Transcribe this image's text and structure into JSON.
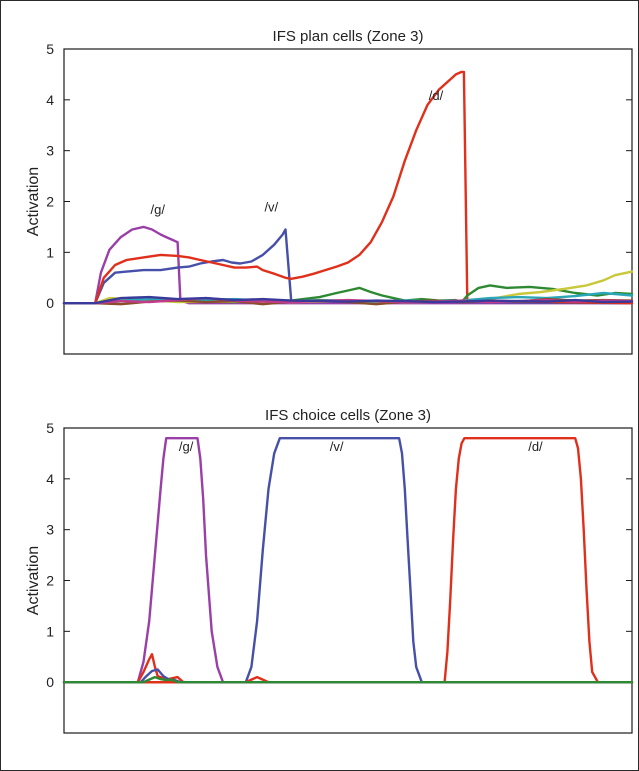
{
  "chart_data": [
    {
      "type": "line",
      "title": "IFS plan cells (Zone 3)",
      "xlabel": "",
      "ylabel": "Activation",
      "xlim": [
        0,
        100
      ],
      "ylim": [
        -1,
        5
      ],
      "yticks": [
        "0",
        "1",
        "2",
        "3",
        "4",
        "5"
      ],
      "legend": "none",
      "grid": false,
      "curve_labels": [
        {
          "text": "/g/",
          "x": 16.5,
          "y": 1.75
        },
        {
          "text": "/v/",
          "x": 36.5,
          "y": 1.8
        },
        {
          "text": "/d/",
          "x": 65.5,
          "y": 4.0
        }
      ],
      "series": [
        {
          "color": "#9b3fa8",
          "x": [
            0,
            5.5,
            6.5,
            8,
            10,
            12,
            14,
            15.5,
            17,
            18,
            19,
            20,
            20.5,
            22,
            100
          ],
          "y": [
            0,
            0,
            0.6,
            1.05,
            1.3,
            1.45,
            1.5,
            1.45,
            1.35,
            1.3,
            1.25,
            1.2,
            0.05,
            0,
            0
          ]
        },
        {
          "color": "#4650a8",
          "x": [
            0,
            5.5,
            7,
            9,
            11,
            14,
            17,
            20,
            22,
            24,
            26,
            28,
            29.5,
            31,
            33,
            35,
            37,
            38.5,
            39,
            40,
            100
          ],
          "y": [
            0,
            0,
            0.4,
            0.6,
            0.62,
            0.65,
            0.65,
            0.7,
            0.72,
            0.78,
            0.82,
            0.85,
            0.8,
            0.78,
            0.82,
            0.95,
            1.15,
            1.35,
            1.45,
            0.05,
            0
          ]
        },
        {
          "color": "#e0301c",
          "x": [
            0,
            5.5,
            7,
            9,
            11,
            14,
            17,
            20,
            22,
            24,
            26,
            28,
            30,
            32,
            34,
            35,
            37,
            39,
            40,
            42,
            44,
            46,
            48,
            50,
            52,
            54,
            56,
            58,
            60,
            62,
            64,
            66,
            68,
            69,
            70,
            70.4,
            71,
            100
          ],
          "y": [
            0,
            0,
            0.5,
            0.75,
            0.85,
            0.9,
            0.95,
            0.93,
            0.9,
            0.85,
            0.8,
            0.75,
            0.7,
            0.7,
            0.72,
            0.65,
            0.58,
            0.5,
            0.48,
            0.52,
            0.58,
            0.65,
            0.72,
            0.8,
            0.95,
            1.2,
            1.6,
            2.1,
            2.8,
            3.4,
            3.9,
            4.2,
            4.4,
            4.5,
            4.55,
            4.55,
            0.05,
            0
          ]
        },
        {
          "color": "#2e8a32",
          "x": [
            0,
            5.5,
            8,
            12,
            16,
            20,
            25,
            30,
            35,
            40,
            45,
            48,
            50,
            52,
            54,
            56,
            58,
            60,
            63,
            66,
            69,
            70,
            71,
            73,
            75,
            78,
            82,
            86,
            90,
            94,
            97,
            100
          ],
          "y": [
            0,
            0,
            0.02,
            0.05,
            0.08,
            0.05,
            0.03,
            0.02,
            0.05,
            0.05,
            0.12,
            0.2,
            0.25,
            0.3,
            0.22,
            0.15,
            0.1,
            0.05,
            0.08,
            0.05,
            0.06,
            0.02,
            0.15,
            0.3,
            0.35,
            0.3,
            0.32,
            0.28,
            0.2,
            0.15,
            0.2,
            0.18
          ]
        },
        {
          "color": "#c8c83a",
          "x": [
            0,
            5.5,
            8,
            12,
            16,
            20,
            30,
            40,
            50,
            60,
            70,
            72,
            76,
            80,
            84,
            88,
            92,
            95,
            97,
            100
          ],
          "y": [
            0,
            0,
            0.1,
            0.08,
            0.05,
            0.02,
            0.03,
            0.02,
            0.04,
            0.02,
            0.03,
            0.05,
            0.1,
            0.18,
            0.22,
            0.28,
            0.35,
            0.45,
            0.55,
            0.62
          ]
        },
        {
          "color": "#2aa6b8",
          "x": [
            0,
            5.5,
            10,
            15,
            20,
            25,
            30,
            35,
            40,
            45,
            50,
            55,
            60,
            65,
            70,
            75,
            80,
            85,
            90,
            95,
            100
          ],
          "y": [
            0,
            0,
            0.05,
            0.08,
            0.05,
            0.06,
            0.08,
            0.05,
            0.04,
            0.06,
            0.05,
            0.03,
            0.05,
            0.04,
            0.05,
            0.1,
            0.12,
            0.1,
            0.14,
            0.2,
            0.15
          ]
        },
        {
          "color": "#8a4f2a",
          "x": [
            0,
            5.5,
            10,
            15,
            20,
            25,
            30,
            35,
            40,
            45,
            50,
            55,
            60,
            65,
            70,
            75,
            80,
            85,
            90,
            95,
            100
          ],
          "y": [
            0,
            0,
            -0.02,
            0.03,
            0.05,
            0.02,
            0.04,
            -0.02,
            0.03,
            0.05,
            0.02,
            -0.02,
            0.03,
            0.05,
            0.02,
            0.04,
            0.03,
            0.08,
            0.05,
            0.06,
            0.05
          ]
        },
        {
          "color": "#c23a8c",
          "x": [
            0,
            5.5,
            10,
            15,
            20,
            25,
            30,
            35,
            40,
            45,
            50,
            55,
            60,
            65,
            70,
            75,
            80,
            85,
            90,
            95,
            100
          ],
          "y": [
            0,
            0,
            0.04,
            0.02,
            0.06,
            0.1,
            0.05,
            0.03,
            0.02,
            0.04,
            0.06,
            0.04,
            0.02,
            0.03,
            0.05,
            0.02,
            0.04,
            0.06,
            0.03,
            0.05,
            0.04
          ]
        },
        {
          "color": "#3a3a9a",
          "x": [
            0,
            5.5,
            10,
            15,
            20,
            25,
            30,
            35,
            40,
            45,
            50,
            55,
            60,
            65,
            70,
            75,
            80,
            85,
            90,
            95,
            100
          ],
          "y": [
            0,
            0,
            0.1,
            0.12,
            0.08,
            0.1,
            0.06,
            0.08,
            0.05,
            0.04,
            0.03,
            0.05,
            0.04,
            0.02,
            0.03,
            0.05,
            0.04,
            0.03,
            0.06,
            0.02,
            0.03
          ]
        }
      ]
    },
    {
      "type": "line",
      "title": "IFS choice cells (Zone 3)",
      "xlabel": "",
      "ylabel": "Activation",
      "xlim": [
        0,
        100
      ],
      "ylim": [
        -1,
        5
      ],
      "yticks": [
        "0",
        "1",
        "2",
        "3",
        "4",
        "5"
      ],
      "legend": "none",
      "grid": false,
      "curve_labels": [
        {
          "text": "/g/",
          "x": 21.5,
          "y": 4.55
        },
        {
          "text": "/v/",
          "x": 48,
          "y": 4.55
        },
        {
          "text": "/d/",
          "x": 83,
          "y": 4.55
        }
      ],
      "series": [
        {
          "color": "#9b3fa8",
          "x": [
            0,
            13,
            14,
            15,
            16,
            17,
            17.5,
            18,
            23.5,
            24,
            24.5,
            25,
            26,
            27,
            28,
            100
          ],
          "y": [
            0,
            0,
            0.4,
            1.2,
            2.5,
            3.8,
            4.4,
            4.8,
            4.8,
            4.4,
            3.6,
            2.5,
            1.0,
            0.3,
            0,
            0
          ]
        },
        {
          "color": "#4650a8",
          "x": [
            0,
            32,
            33,
            34,
            35,
            36,
            37,
            38,
            59,
            59.5,
            60,
            60.5,
            61,
            61.5,
            62,
            63,
            100
          ],
          "y": [
            0,
            0,
            0.3,
            1.2,
            2.6,
            3.8,
            4.5,
            4.8,
            4.8,
            4.5,
            3.8,
            2.8,
            1.8,
            0.8,
            0.3,
            0,
            0
          ]
        },
        {
          "color": "#e0301c",
          "x": [
            0,
            67,
            67.5,
            68,
            68.5,
            69,
            69.5,
            70,
            70.5,
            71,
            90,
            90.5,
            91,
            91.5,
            92,
            92.5,
            93,
            94,
            100
          ],
          "y": [
            0,
            0,
            0.6,
            1.6,
            2.8,
            3.8,
            4.4,
            4.7,
            4.8,
            4.8,
            4.8,
            4.6,
            4.0,
            3.0,
            1.8,
            0.8,
            0.2,
            0,
            0
          ]
        },
        {
          "color": "#e0301c",
          "x": [
            0,
            13,
            14,
            15,
            15.5,
            16,
            16.5,
            17,
            18,
            20,
            21,
            100
          ],
          "y": [
            0,
            0,
            0.2,
            0.45,
            0.55,
            0.3,
            0.12,
            0.1,
            0.05,
            0.1,
            0,
            0
          ]
        },
        {
          "color": "#e0301c",
          "x": [
            0,
            32,
            33,
            34,
            35,
            36,
            100
          ],
          "y": [
            0,
            0,
            0.05,
            0.1,
            0.05,
            0,
            0
          ]
        },
        {
          "color": "#4650a8",
          "x": [
            0,
            13.5,
            14.5,
            15.5,
            16.5,
            17.5,
            18.5,
            19.5,
            20.5,
            100
          ],
          "y": [
            0,
            0,
            0.12,
            0.22,
            0.25,
            0.12,
            0.05,
            0.04,
            0,
            0
          ]
        },
        {
          "color": "#2e8a32",
          "x": [
            0,
            14,
            15,
            16,
            17,
            18,
            19,
            20,
            100
          ],
          "y": [
            0,
            0,
            0.05,
            0.1,
            0.06,
            0.04,
            0.05,
            0,
            0
          ]
        }
      ]
    }
  ]
}
